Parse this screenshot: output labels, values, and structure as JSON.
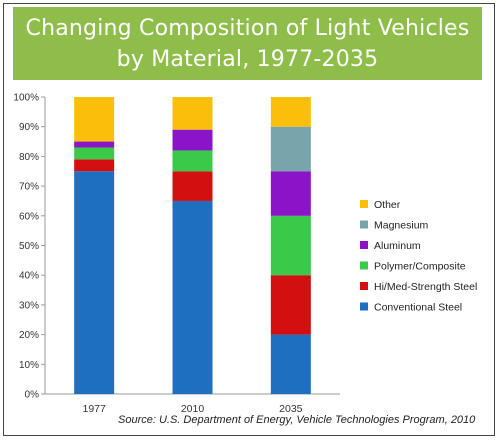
{
  "chart_data": {
    "type": "bar",
    "stacked": true,
    "title": "Changing Composition of Light Vehicles\nby Material, 1977-2035",
    "categories": [
      "1977",
      "2010",
      "2035"
    ],
    "ylim": [
      0,
      100
    ],
    "yticks": [
      "0%",
      "10%",
      "20%",
      "30%",
      "40%",
      "50%",
      "60%",
      "70%",
      "80%",
      "90%",
      "100%"
    ],
    "grid": false,
    "legend_position": "right",
    "series": [
      {
        "name": "Conventional Steel",
        "color": "#1f6fc0",
        "values": [
          75,
          65,
          20
        ]
      },
      {
        "name": "Hi/Med-Strength Steel",
        "color": "#d40f0f",
        "values": [
          4,
          10,
          20
        ]
      },
      {
        "name": "Polymer/Composite",
        "color": "#3bc94a",
        "values": [
          4,
          7,
          20
        ]
      },
      {
        "name": "Aluminum",
        "color": "#8b14c8",
        "values": [
          2,
          7,
          15
        ]
      },
      {
        "name": "Magnesium",
        "color": "#78a4ac",
        "values": [
          0,
          0,
          15
        ]
      },
      {
        "name": "Other",
        "color": "#fbbf0b",
        "values": [
          15,
          11,
          10
        ]
      }
    ],
    "source": "Source: U.S. Department of Energy, Vehicle Technologies Program, 2010"
  }
}
